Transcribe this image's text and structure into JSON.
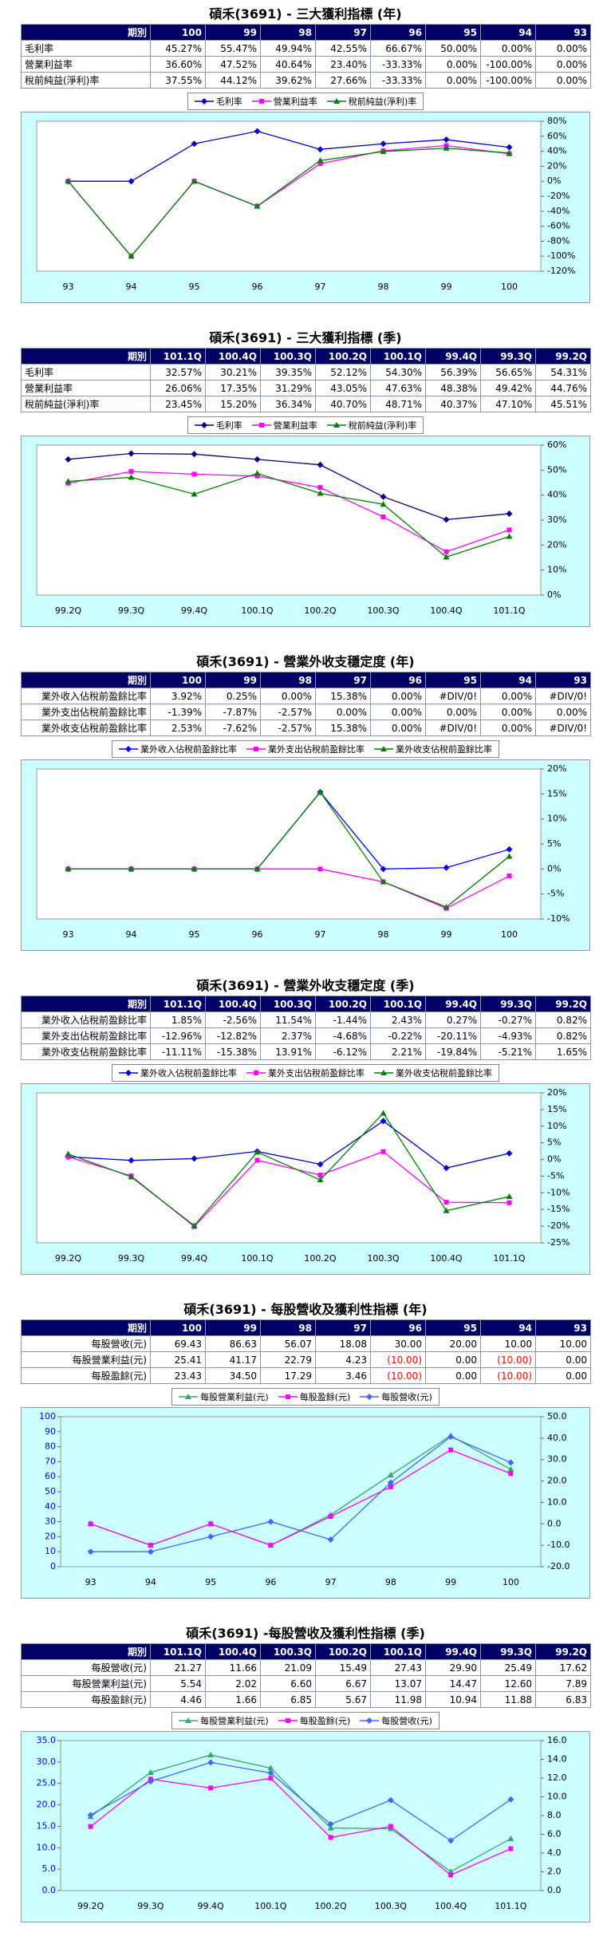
{
  "tables": [
    {
      "title": "碩禾(3691) - 三大獲利指標 (年)",
      "header": [
        "期別",
        "100",
        "99",
        "98",
        "97",
        "96",
        "95",
        "94",
        "93"
      ],
      "rows": [
        {
          "label": "毛利率",
          "cells": [
            "45.27%",
            "55.47%",
            "49.94%",
            "42.55%",
            "66.67%",
            "50.00%",
            "0.00%",
            "0.00%"
          ]
        },
        {
          "label": "營業利益率",
          "cells": [
            "36.60%",
            "47.52%",
            "40.64%",
            "23.40%",
            "-33.33%",
            "0.00%",
            "-100.00%",
            "0.00%"
          ]
        },
        {
          "label": "稅前純益(淨利)率",
          "cells": [
            "37.55%",
            "44.12%",
            "39.62%",
            "27.66%",
            "-33.33%",
            "0.00%",
            "-100.00%",
            "0.00%"
          ]
        }
      ]
    },
    {
      "title": "碩禾(3691) - 三大獲利指標 (季)",
      "header": [
        "期別",
        "101.1Q",
        "100.4Q",
        "100.3Q",
        "100.2Q",
        "100.1Q",
        "99.4Q",
        "99.3Q",
        "99.2Q"
      ],
      "rows": [
        {
          "label": "毛利率",
          "cells": [
            "32.57%",
            "30.21%",
            "39.35%",
            "52.12%",
            "54.30%",
            "56.39%",
            "56.65%",
            "54.31%"
          ]
        },
        {
          "label": "營業利益率",
          "cells": [
            "26.06%",
            "17.35%",
            "31.29%",
            "43.05%",
            "47.63%",
            "48.38%",
            "49.42%",
            "44.76%"
          ]
        },
        {
          "label": "稅前純益(淨利)率",
          "cells": [
            "23.45%",
            "15.20%",
            "36.34%",
            "40.70%",
            "48.71%",
            "40.37%",
            "47.10%",
            "45.51%"
          ]
        }
      ]
    },
    {
      "title": "碩禾(3691) - 營業外收支穩定度 (年)",
      "header": [
        "期別",
        "100",
        "99",
        "98",
        "97",
        "96",
        "95",
        "94",
        "93"
      ],
      "rows": [
        {
          "label": "業外收入佔稅前盈餘比率",
          "cells": [
            "3.92%",
            "0.25%",
            "0.00%",
            "15.38%",
            "0.00%",
            "#DIV/0!",
            "0.00%",
            "#DIV/0!"
          ]
        },
        {
          "label": "業外支出佔稅前盈餘比率",
          "cells": [
            "-1.39%",
            "-7.87%",
            "-2.57%",
            "0.00%",
            "0.00%",
            "0.00%",
            "0.00%",
            "0.00%"
          ]
        },
        {
          "label": "業外收支佔稅前盈餘比率",
          "cells": [
            "2.53%",
            "-7.62%",
            "-2.57%",
            "15.38%",
            "0.00%",
            "#DIV/0!",
            "0.00%",
            "#DIV/0!"
          ]
        }
      ]
    },
    {
      "title": "碩禾(3691) - 營業外收支穩定度 (季)",
      "header": [
        "期別",
        "101.1Q",
        "100.4Q",
        "100.3Q",
        "100.2Q",
        "100.1Q",
        "99.4Q",
        "99.3Q",
        "99.2Q"
      ],
      "rows": [
        {
          "label": "業外收入佔稅前盈餘比率",
          "cells": [
            "1.85%",
            "-2.56%",
            "11.54%",
            "-1.44%",
            "2.43%",
            "0.27%",
            "-0.27%",
            "0.82%"
          ]
        },
        {
          "label": "業外支出佔稅前盈餘比率",
          "cells": [
            "-12.96%",
            "-12.82%",
            "2.37%",
            "-4.68%",
            "-0.22%",
            "-20.11%",
            "-4.93%",
            "0.82%"
          ]
        },
        {
          "label": "業外收支佔稅前盈餘比率",
          "cells": [
            "-11.11%",
            "-15.38%",
            "13.91%",
            "-6.12%",
            "2.21%",
            "-19.84%",
            "-5.21%",
            "1.65%"
          ]
        }
      ]
    },
    {
      "title": "碩禾(3691) - 每股營收及獲利性指標 (年)",
      "header": [
        "期別",
        "100",
        "99",
        "98",
        "97",
        "96",
        "95",
        "94",
        "93"
      ],
      "rows": [
        {
          "label": "每股營收(元)",
          "cells": [
            "69.43",
            "86.63",
            "56.07",
            "18.08",
            "30.00",
            "20.00",
            "10.00",
            "10.00"
          ]
        },
        {
          "label": "每股營業利益(元)",
          "cells": [
            "25.41",
            "41.17",
            "22.79",
            "4.23",
            "(10.00)",
            "0.00",
            "(10.00)",
            "0.00"
          ]
        },
        {
          "label": "每股盈餘(元)",
          "cells": [
            "23.43",
            "34.50",
            "17.29",
            "3.46",
            "(10.00)",
            "0.00",
            "(10.00)",
            "0.00"
          ]
        }
      ]
    },
    {
      "title": "碩禾(3691) -每股營收及獲利性指標 (季)",
      "header": [
        "期別",
        "101.1Q",
        "100.4Q",
        "100.3Q",
        "100.2Q",
        "100.1Q",
        "99.4Q",
        "99.3Q",
        "99.2Q"
      ],
      "rows": [
        {
          "label": "每股營收(元)",
          "cells": [
            "21.27",
            "11.66",
            "21.09",
            "15.49",
            "27.43",
            "29.90",
            "25.49",
            "17.62"
          ]
        },
        {
          "label": "每股營業利益(元)",
          "cells": [
            "5.54",
            "2.02",
            "6.60",
            "6.67",
            "13.07",
            "14.47",
            "12.60",
            "7.89"
          ]
        },
        {
          "label": "每股盈餘(元)",
          "cells": [
            "4.46",
            "1.66",
            "6.85",
            "5.67",
            "11.98",
            "10.94",
            "11.88",
            "6.83"
          ]
        }
      ]
    }
  ],
  "chart_data": [
    {
      "type": "line",
      "categories": [
        "93",
        "94",
        "95",
        "96",
        "97",
        "98",
        "99",
        "100"
      ],
      "plot_background": "#ffffff",
      "ylim": [
        -120,
        80
      ],
      "yticks": [
        {
          "value": -120,
          "label": "-120%"
        },
        {
          "value": -100,
          "label": "-100%"
        },
        {
          "value": -80,
          "label": "-80%"
        },
        {
          "value": -60,
          "label": "-60%"
        },
        {
          "value": -40,
          "label": "-40%"
        },
        {
          "value": -20,
          "label": "-20%"
        },
        {
          "value": 0,
          "label": "0%"
        },
        {
          "value": 20,
          "label": "20%"
        },
        {
          "value": 40,
          "label": "40%"
        },
        {
          "value": 60,
          "label": "60%"
        },
        {
          "value": 80,
          "label": "80%"
        }
      ],
      "series": [
        {
          "name": "毛利率",
          "color": "#0000cc",
          "marker": "diamond",
          "values": [
            0,
            0,
            50,
            66.67,
            42.55,
            49.94,
            55.47,
            45.27
          ]
        },
        {
          "name": "營業利益率",
          "color": "#ff00ff",
          "marker": "square",
          "values": [
            0,
            -100,
            0,
            -33.33,
            23.4,
            40.64,
            47.52,
            36.6
          ]
        },
        {
          "name": "稅前純益(淨利)率",
          "color": "#008000",
          "marker": "triangle",
          "values": [
            0,
            -100,
            0,
            -33.33,
            27.66,
            39.62,
            44.12,
            37.55
          ]
        }
      ]
    },
    {
      "type": "line",
      "categories": [
        "99.2Q",
        "99.3Q",
        "99.4Q",
        "100.1Q",
        "100.2Q",
        "100.3Q",
        "100.4Q",
        "101.1Q"
      ],
      "plot_background": "#ffffff",
      "ylim": [
        0,
        60
      ],
      "yticks": [
        {
          "value": 0,
          "label": "0%"
        },
        {
          "value": 10,
          "label": "10%"
        },
        {
          "value": 20,
          "label": "20%"
        },
        {
          "value": 30,
          "label": "30%"
        },
        {
          "value": 40,
          "label": "40%"
        },
        {
          "value": 50,
          "label": "50%"
        },
        {
          "value": 60,
          "label": "60%"
        }
      ],
      "series": [
        {
          "name": "毛利率",
          "color": "#000080",
          "marker": "diamond",
          "values": [
            54.31,
            56.65,
            56.39,
            54.3,
            52.12,
            39.35,
            30.21,
            32.57
          ]
        },
        {
          "name": "營業利益率",
          "color": "#ff00ff",
          "marker": "square",
          "values": [
            44.76,
            49.42,
            48.38,
            47.63,
            43.05,
            31.29,
            17.35,
            26.06
          ]
        },
        {
          "name": "稅前純益(淨利)率",
          "color": "#008000",
          "marker": "triangle",
          "values": [
            45.51,
            47.1,
            40.37,
            48.71,
            40.7,
            36.34,
            15.2,
            23.45
          ]
        }
      ]
    },
    {
      "type": "line",
      "categories": [
        "93",
        "94",
        "95",
        "96",
        "97",
        "98",
        "99",
        "100"
      ],
      "plot_background": "#ffffff",
      "ylim": [
        -10,
        20
      ],
      "yticks": [
        {
          "value": -10,
          "label": "-10%"
        },
        {
          "value": -5,
          "label": "-5%"
        },
        {
          "value": 0,
          "label": "0%"
        },
        {
          "value": 5,
          "label": "5%"
        },
        {
          "value": 10,
          "label": "10%"
        },
        {
          "value": 15,
          "label": "15%"
        },
        {
          "value": 20,
          "label": "20%"
        }
      ],
      "series": [
        {
          "name": "業外收入佔稅前盈餘比率",
          "color": "#0000ff",
          "marker": "diamond",
          "values": [
            0,
            0,
            0,
            0,
            15.38,
            0,
            0.25,
            3.92
          ]
        },
        {
          "name": "業外支出佔稅前盈餘比率",
          "color": "#ff00ff",
          "marker": "square",
          "values": [
            0,
            0,
            0,
            0,
            0,
            -2.57,
            -7.87,
            -1.39
          ]
        },
        {
          "name": "業外收支佔稅前盈餘比率",
          "color": "#008000",
          "marker": "triangle",
          "values": [
            0,
            0,
            0,
            0,
            15.38,
            -2.57,
            -7.62,
            2.53
          ]
        }
      ]
    },
    {
      "type": "line",
      "categories": [
        "99.2Q",
        "99.3Q",
        "99.4Q",
        "100.1Q",
        "100.2Q",
        "100.3Q",
        "100.4Q",
        "101.1Q"
      ],
      "plot_background": "#ffffff",
      "ylim": [
        -25,
        20
      ],
      "yticks": [
        {
          "value": -25,
          "label": "-25%"
        },
        {
          "value": -20,
          "label": "-20%"
        },
        {
          "value": -15,
          "label": "-15%"
        },
        {
          "value": -10,
          "label": "-10%"
        },
        {
          "value": -5,
          "label": "-5%"
        },
        {
          "value": 0,
          "label": "0%"
        },
        {
          "value": 5,
          "label": "5%"
        },
        {
          "value": 10,
          "label": "10%"
        },
        {
          "value": 15,
          "label": "15%"
        },
        {
          "value": 20,
          "label": "20%"
        }
      ],
      "series": [
        {
          "name": "業外收入佔稅前盈餘比率",
          "color": "#0000cc",
          "marker": "diamond",
          "values": [
            0.82,
            -0.27,
            0.27,
            2.43,
            -1.44,
            11.54,
            -2.56,
            1.85
          ]
        },
        {
          "name": "業外支出佔稅前盈餘比率",
          "color": "#ff00ff",
          "marker": "square",
          "values": [
            0.82,
            -4.93,
            -20.11,
            -0.22,
            -4.68,
            2.37,
            -12.82,
            -12.96
          ]
        },
        {
          "name": "業外收支佔稅前盈餘比率",
          "color": "#008000",
          "marker": "triangle",
          "values": [
            1.65,
            -5.21,
            -19.84,
            2.21,
            -6.12,
            13.91,
            -15.38,
            -11.11
          ]
        }
      ]
    },
    {
      "type": "line",
      "categories": [
        "93",
        "94",
        "95",
        "96",
        "97",
        "98",
        "99",
        "100"
      ],
      "plot_background": "#ccffff",
      "ytick_color": "#0000ff",
      "ylim": [
        0,
        100
      ],
      "yticks": [
        0,
        10,
        20,
        30,
        40,
        50,
        60,
        70,
        80,
        90,
        100
      ],
      "y2lim": [
        -20,
        50
      ],
      "y2ticks": [
        {
          "value": -20,
          "label": "-20.0"
        },
        {
          "value": -10,
          "label": "-10.0"
        },
        {
          "value": 0,
          "label": "0.0"
        },
        {
          "value": 10,
          "label": "10.0"
        },
        {
          "value": 20,
          "label": "20.0"
        },
        {
          "value": 30,
          "label": "30.0"
        },
        {
          "value": 40,
          "label": "40.0"
        },
        {
          "value": 50,
          "label": "50.0"
        }
      ],
      "series": [
        {
          "name": "每股營業利益(元)",
          "color": "#33aa66",
          "marker": "triangle",
          "axis": "y2",
          "values": [
            0,
            -10,
            0,
            -10,
            4.23,
            22.79,
            41.17,
            25.41
          ]
        },
        {
          "name": "每股盈餘(元)",
          "color": "#ff00ff",
          "marker": "square",
          "axis": "y2",
          "values": [
            0,
            -10,
            0,
            -10,
            3.46,
            17.29,
            34.5,
            23.43
          ]
        },
        {
          "name": "每股營收(元)",
          "color": "#4466ff",
          "marker": "diamond",
          "values": [
            10,
            10,
            20,
            30,
            18.08,
            56.07,
            86.63,
            69.43
          ]
        }
      ]
    },
    {
      "type": "line",
      "categories": [
        "99.2Q",
        "99.3Q",
        "99.4Q",
        "100.1Q",
        "100.2Q",
        "100.3Q",
        "100.4Q",
        "101.1Q"
      ],
      "plot_background": "#ccffff",
      "ytick_color": "#0000ff",
      "ylim": [
        0,
        35
      ],
      "yticks": [
        {
          "value": 0,
          "label": "0.0"
        },
        {
          "value": 5,
          "label": "5.0"
        },
        {
          "value": 10,
          "label": "10.0"
        },
        {
          "value": 15,
          "label": "15.0"
        },
        {
          "value": 20,
          "label": "20.0"
        },
        {
          "value": 25,
          "label": "25.0"
        },
        {
          "value": 30,
          "label": "30.0"
        },
        {
          "value": 35,
          "label": "35.0"
        }
      ],
      "y2lim": [
        0,
        16
      ],
      "y2ticks": [
        {
          "value": 0,
          "label": "0.0"
        },
        {
          "value": 2,
          "label": "2.0"
        },
        {
          "value": 4,
          "label": "4.0"
        },
        {
          "value": 6,
          "label": "6.0"
        },
        {
          "value": 8,
          "label": "8.0"
        },
        {
          "value": 10,
          "label": "10.0"
        },
        {
          "value": 12,
          "label": "12.0"
        },
        {
          "value": 14,
          "label": "14.0"
        },
        {
          "value": 16,
          "label": "16.0"
        }
      ],
      "series": [
        {
          "name": "每股營業利益(元)",
          "color": "#33aa66",
          "marker": "triangle",
          "axis": "y2",
          "values": [
            7.89,
            12.6,
            14.47,
            13.07,
            6.67,
            6.6,
            2.02,
            5.54
          ]
        },
        {
          "name": "每股盈餘(元)",
          "color": "#ff00ff",
          "marker": "square",
          "axis": "y2",
          "values": [
            6.83,
            11.88,
            10.94,
            11.98,
            5.67,
            6.85,
            1.66,
            4.46
          ]
        },
        {
          "name": "每股營收(元)",
          "color": "#4466ff",
          "marker": "diamond",
          "values": [
            17.62,
            25.49,
            29.9,
            27.43,
            15.49,
            21.09,
            11.66,
            21.27
          ]
        }
      ]
    }
  ]
}
